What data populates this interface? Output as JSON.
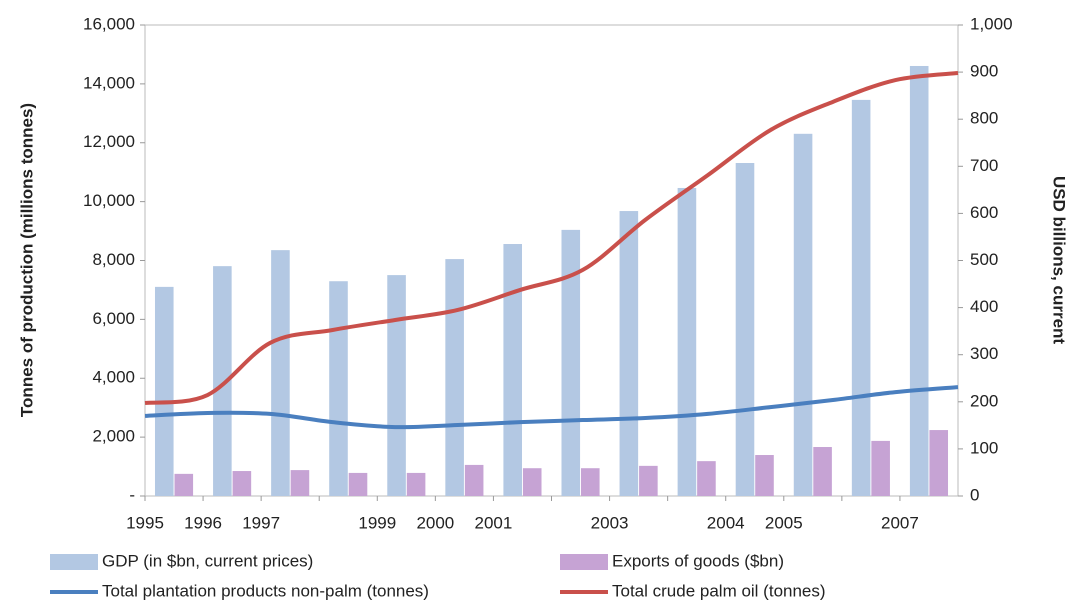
{
  "chart_data": {
    "type": "bar-line",
    "y_label": "Tonnes of production (millions tonnes)",
    "y2_label": "USD billions, current",
    "categories": [
      "1995",
      "1996",
      "1997",
      null,
      "1999",
      "2000",
      "2001",
      null,
      "2003",
      null,
      "2004",
      "2005",
      null,
      "2007"
    ],
    "ylim": [
      0,
      16000
    ],
    "yticks": [
      {
        "value": 0,
        "label": "-"
      },
      {
        "value": 2000,
        "label": "2,000"
      },
      {
        "value": 4000,
        "label": "4,000"
      },
      {
        "value": 6000,
        "label": "6,000"
      },
      {
        "value": 8000,
        "label": "8,000"
      },
      {
        "value": 10000,
        "label": "10,000"
      },
      {
        "value": 12000,
        "label": "12,000"
      },
      {
        "value": 14000,
        "label": "14,000"
      },
      {
        "value": 16000,
        "label": "16,000"
      }
    ],
    "y2lim": [
      0,
      1000
    ],
    "y2ticks": [
      0,
      100,
      200,
      300,
      400,
      500,
      600,
      700,
      800,
      900,
      {
        "value": 1000,
        "label": "1,000"
      }
    ],
    "legend": "bottom",
    "series": [
      {
        "name": "GDP (in $bn, current prices)",
        "type": "bar",
        "axis": "y2",
        "color": "#b3c8e3",
        "values": [
          444,
          488,
          522,
          456,
          469,
          503,
          535,
          565,
          605,
          654,
          707,
          769,
          841,
          913
        ]
      },
      {
        "name": "Exports of goods ($bn)",
        "type": "bar",
        "axis": "y2",
        "color": "#c6a3d4",
        "values": [
          47,
          53,
          55,
          49,
          49,
          66,
          59,
          59,
          64,
          74,
          87,
          104,
          117,
          140
        ]
      },
      {
        "name": "Total plantation products non-palm (tonnes)",
        "type": "line",
        "color": "#4a7fbf",
        "values": [
          2720,
          2820,
          2790,
          2510,
          2340,
          2410,
          2510,
          2580,
          2650,
          2790,
          3020,
          3260,
          3530,
          3700
        ]
      },
      {
        "name": "Total crude palm oil (tonnes)",
        "type": "line",
        "color": "#c9504b",
        "values": [
          3160,
          3430,
          5200,
          5640,
          5980,
          6320,
          7000,
          7680,
          9380,
          10900,
          12430,
          13390,
          14130,
          14370
        ]
      }
    ]
  }
}
